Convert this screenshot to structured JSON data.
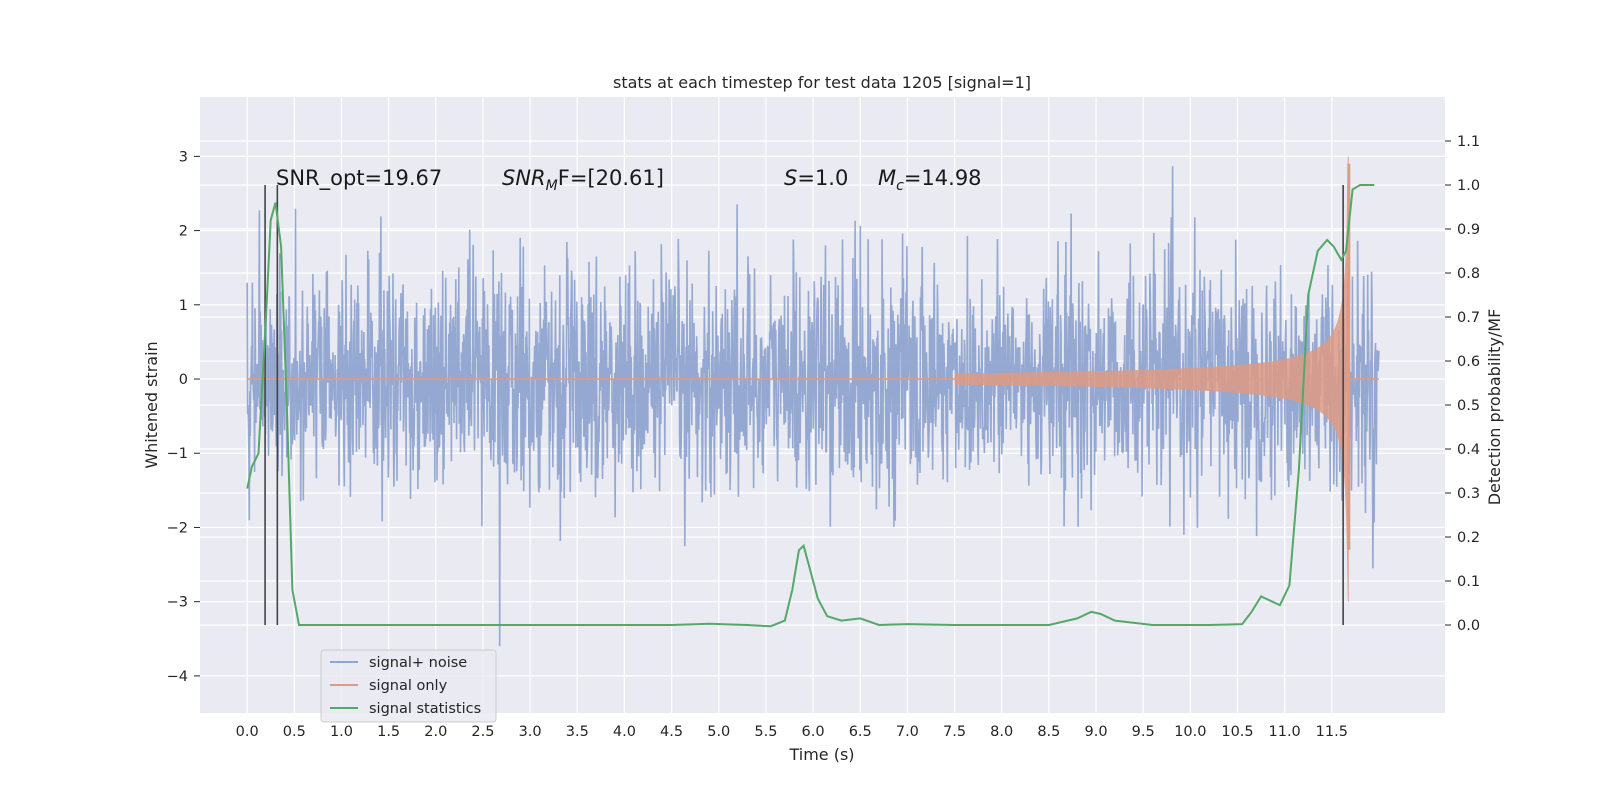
{
  "chart_data": {
    "type": "line",
    "title": "stats at each timestep for test data 1205 [signal=1]",
    "xlabel": "Time (s)",
    "ylabel": "Whitened strain",
    "y2label": "Detection probability/MF",
    "xlim": [
      -0.5,
      12.7
    ],
    "ylim": [
      -4.5,
      3.8
    ],
    "y2lim": [
      -0.2,
      1.2
    ],
    "grid": true,
    "legend_position": "lower-left",
    "x_ticks": [
      0.0,
      0.5,
      1.0,
      1.5,
      2.0,
      2.5,
      3.0,
      3.5,
      4.0,
      4.5,
      5.0,
      5.5,
      6.0,
      6.5,
      7.0,
      7.5,
      8.0,
      8.5,
      9.0,
      9.5,
      10.0,
      10.5,
      11.0,
      11.5
    ],
    "x_tick_labels": [
      "0.0",
      "0.5",
      "1.0",
      "1.5",
      "2.0",
      "2.5",
      "3.0",
      "3.5",
      "4.0",
      "4.5",
      "5.0",
      "5.5",
      "6.0",
      "6.5",
      "7.0",
      "7.5",
      "8.0",
      "8.5",
      "9.0",
      "9.5",
      "10.0",
      "10.5",
      "11.0",
      "11.5"
    ],
    "y_ticks": [
      -4,
      -3,
      -2,
      -1,
      0,
      1,
      2,
      3
    ],
    "y_tick_labels": [
      "−4",
      "−3",
      "−2",
      "−1",
      "0",
      "1",
      "2",
      "3"
    ],
    "y2_ticks": [
      0.0,
      0.1,
      0.2,
      0.3,
      0.4,
      0.5,
      0.6,
      0.7,
      0.8,
      0.9,
      1.0,
      1.1
    ],
    "y2_tick_labels": [
      "0.0",
      "0.1",
      "0.2",
      "0.3",
      "0.4",
      "0.5",
      "0.6",
      "0.7",
      "0.8",
      "0.9",
      "1.0",
      "1.1"
    ],
    "annotations": {
      "snr_opt": "SNR_opt=19.67",
      "snr_mf_main": "SNR",
      "snr_mf_sub": "M",
      "snr_mf_rest": "F=[20.61]",
      "s_main": "S",
      "s_rest": "=1.0",
      "mc_main": "M",
      "mc_sub": "c",
      "mc_rest": "=14.98"
    },
    "vertical_lines_x": [
      0.19,
      0.32,
      11.62
    ],
    "series": [
      {
        "name": "signal+ noise",
        "color": "#8fa4cf",
        "duration": 12.0,
        "noise_sigma": 0.75,
        "y_range": [
          -4.1,
          3.5
        ]
      },
      {
        "name": "signal only",
        "color": "#dd9b85",
        "chirp_end": 11.68,
        "peak_amplitude": 3.0
      },
      {
        "name": "signal statistics",
        "color": "#55a868",
        "points": [
          [
            0.0,
            0.31
          ],
          [
            0.05,
            0.36
          ],
          [
            0.12,
            0.39
          ],
          [
            0.2,
            0.7
          ],
          [
            0.25,
            0.92
          ],
          [
            0.3,
            0.96
          ],
          [
            0.36,
            0.86
          ],
          [
            0.42,
            0.5
          ],
          [
            0.48,
            0.08
          ],
          [
            0.55,
            0.0
          ],
          [
            1.0,
            0.0
          ],
          [
            2.0,
            0.0
          ],
          [
            2.8,
            0.0
          ],
          [
            3.5,
            0.0
          ],
          [
            4.5,
            0.0
          ],
          [
            4.9,
            0.003
          ],
          [
            5.3,
            0.0
          ],
          [
            5.55,
            -0.003
          ],
          [
            5.7,
            0.01
          ],
          [
            5.78,
            0.08
          ],
          [
            5.85,
            0.17
          ],
          [
            5.9,
            0.18
          ],
          [
            5.95,
            0.14
          ],
          [
            6.05,
            0.06
          ],
          [
            6.15,
            0.02
          ],
          [
            6.3,
            0.01
          ],
          [
            6.5,
            0.015
          ],
          [
            6.7,
            0.0
          ],
          [
            7.0,
            0.002
          ],
          [
            7.5,
            0.0
          ],
          [
            8.5,
            0.0
          ],
          [
            8.8,
            0.015
          ],
          [
            8.95,
            0.03
          ],
          [
            9.05,
            0.025
          ],
          [
            9.2,
            0.01
          ],
          [
            9.6,
            0.0
          ],
          [
            10.2,
            0.0
          ],
          [
            10.55,
            0.002
          ],
          [
            10.65,
            0.03
          ],
          [
            10.75,
            0.065
          ],
          [
            10.85,
            0.055
          ],
          [
            10.95,
            0.045
          ],
          [
            11.05,
            0.09
          ],
          [
            11.15,
            0.35
          ],
          [
            11.25,
            0.75
          ],
          [
            11.35,
            0.85
          ],
          [
            11.45,
            0.875
          ],
          [
            11.52,
            0.86
          ],
          [
            11.6,
            0.83
          ],
          [
            11.65,
            0.85
          ],
          [
            11.72,
            0.99
          ],
          [
            11.8,
            1.0
          ],
          [
            11.95,
            1.0
          ]
        ]
      }
    ]
  }
}
